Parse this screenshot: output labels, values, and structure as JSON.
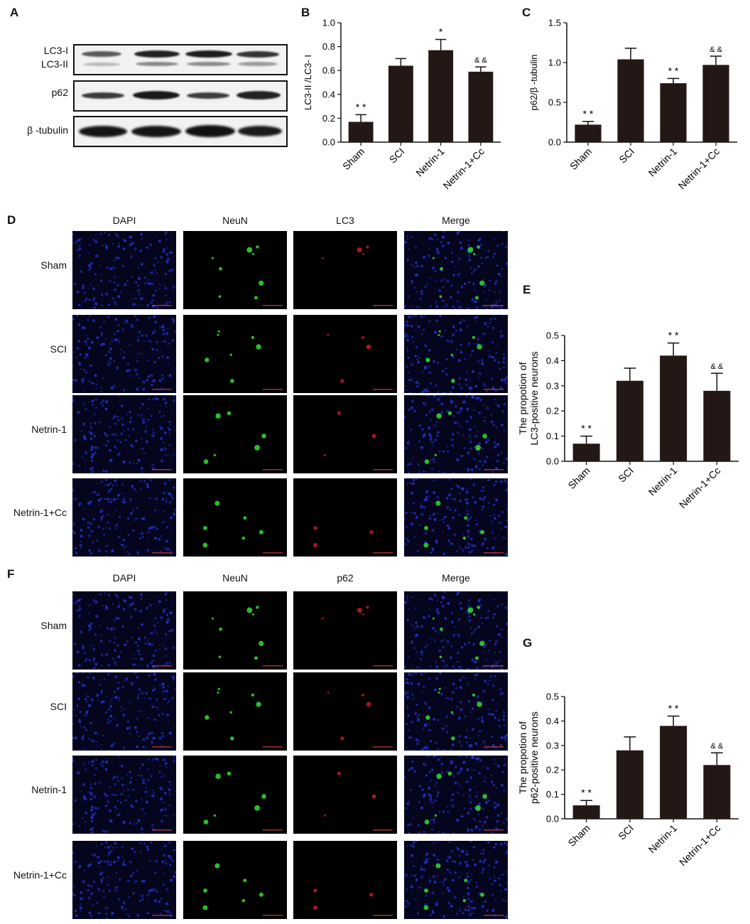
{
  "panels": {
    "a": "A",
    "b": "B",
    "c": "C",
    "d": "D",
    "e": "E",
    "f": "F",
    "g": "G"
  },
  "western_blot": {
    "rows": [
      {
        "labels": [
          "LC3-I",
          "LC3-II"
        ]
      },
      {
        "labels": [
          "p62"
        ]
      },
      {
        "labels": [
          "β -tubulin"
        ]
      }
    ]
  },
  "microscopy_d": {
    "columns": [
      "DAPI",
      "NeuN",
      "LC3",
      "Merge"
    ],
    "rows": [
      "Sham",
      "SCI",
      "Netrin-1",
      "Netrin-1+Cc"
    ]
  },
  "microscopy_f": {
    "columns": [
      "DAPI",
      "NeuN",
      "p62",
      "Merge"
    ],
    "rows": [
      "Sham",
      "SCI",
      "Netrin-1",
      "Netrin-1+Cc"
    ]
  },
  "colors": {
    "bar": "#231815",
    "dapi": "#2233cc",
    "neun": "#33dd33",
    "lc3": "#dd2222"
  },
  "chart_data": [
    {
      "id": "B",
      "type": "bar",
      "categories": [
        "Sham",
        "SCI",
        "Netrin-1",
        "Netrin-1+Cc"
      ],
      "values": [
        0.17,
        0.64,
        0.77,
        0.59
      ],
      "errors": [
        0.06,
        0.06,
        0.09,
        0.04
      ],
      "annotations": [
        "* *",
        "",
        "*",
        "& &"
      ],
      "ylabel": "LC3-II /LC3- I",
      "ylim": [
        0,
        1.0
      ],
      "yticks": [
        "0.0",
        "0.2",
        "0.4",
        "0.6",
        "0.8",
        "1.0"
      ]
    },
    {
      "id": "C",
      "type": "bar",
      "categories": [
        "Sham",
        "SCI",
        "Netrin-1",
        "Netrin-1+Cc"
      ],
      "values": [
        0.22,
        1.04,
        0.74,
        0.97
      ],
      "errors": [
        0.04,
        0.14,
        0.06,
        0.11
      ],
      "annotations": [
        "* *",
        "",
        "* *",
        "& &"
      ],
      "ylabel": "p62/β -tubulin",
      "ylim": [
        0,
        1.5
      ],
      "yticks": [
        "0.0",
        "0.5",
        "1.0",
        "1.5"
      ]
    },
    {
      "id": "E",
      "type": "bar",
      "categories": [
        "Sham",
        "SCI",
        "Netrin-1",
        "Netrin-1+Cc"
      ],
      "values": [
        0.07,
        0.32,
        0.42,
        0.28
      ],
      "errors": [
        0.03,
        0.05,
        0.05,
        0.07
      ],
      "annotations": [
        "* *",
        "",
        "* *",
        "& &"
      ],
      "ylabel": "The propotion of LC3-positive neurons",
      "ylabel_lines": [
        "The propotion of",
        "LC3-positive neurons"
      ],
      "ylim": [
        0,
        0.5
      ],
      "yticks": [
        "0.0",
        "0.1",
        "0.2",
        "0.3",
        "0.4",
        "0.5"
      ]
    },
    {
      "id": "G",
      "type": "bar",
      "categories": [
        "Sham",
        "SCI",
        "Netrin-1",
        "Netrin-1+Cc"
      ],
      "values": [
        0.055,
        0.28,
        0.38,
        0.22
      ],
      "errors": [
        0.02,
        0.055,
        0.04,
        0.05
      ],
      "annotations": [
        "* *",
        "",
        "* *",
        "& &"
      ],
      "ylabel": "The propotion of p62-positive neurons",
      "ylabel_lines": [
        "The propotion of",
        "p62-positive neurons"
      ],
      "ylim": [
        0,
        0.5
      ],
      "yticks": [
        "0.0",
        "0.1",
        "0.2",
        "0.3",
        "0.4",
        "0.5"
      ]
    }
  ]
}
